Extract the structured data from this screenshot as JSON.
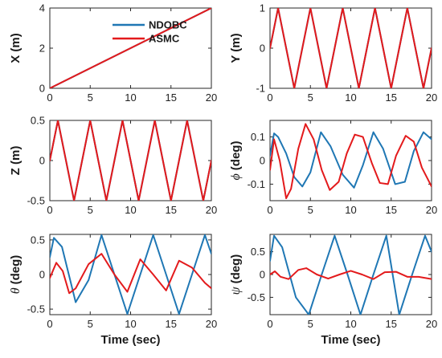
{
  "legend": {
    "entries": [
      {
        "name": "NDOBC",
        "color": "#1f77b4"
      },
      {
        "name": "ASMC",
        "color": "#e31a1c"
      }
    ]
  },
  "chart_data": [
    {
      "id": "X",
      "type": "line",
      "ylabel": "X (m)",
      "ylabel_math": false,
      "xlabel": "",
      "xlim": [
        0,
        20
      ],
      "ylim": [
        0,
        4
      ],
      "xticks": [
        0,
        5,
        10,
        15,
        20
      ],
      "xticklabels": [
        "0",
        "5",
        "10",
        "15",
        "20"
      ],
      "yticks": [
        0,
        2,
        4
      ],
      "yticklabels": [
        "0",
        "2",
        "4"
      ],
      "legend": "top",
      "series": [
        {
          "name": "NDOBC",
          "color": "#1f77b4",
          "x": [
            0,
            20
          ],
          "y": [
            0,
            4
          ]
        },
        {
          "name": "ASMC",
          "color": "#e31a1c",
          "x": [
            0,
            20
          ],
          "y": [
            0,
            4
          ]
        }
      ]
    },
    {
      "id": "Y",
      "type": "line",
      "ylabel": "Y (m)",
      "ylabel_math": false,
      "xlabel": "",
      "xlim": [
        0,
        20
      ],
      "ylim": [
        -1,
        1
      ],
      "xticks": [
        0,
        5,
        10,
        15,
        20
      ],
      "xticklabels": [
        "0",
        "5",
        "10",
        "15",
        "20"
      ],
      "yticks": [
        -1,
        0,
        1
      ],
      "yticklabels": [
        "-1",
        "0",
        "1"
      ],
      "series": [
        {
          "name": "NDOBC",
          "color": "#1f77b4",
          "x": [
            0,
            1,
            2,
            3,
            4,
            5,
            6,
            7,
            8,
            9,
            10,
            11,
            12,
            13,
            14,
            15,
            16,
            17,
            18,
            19,
            20
          ],
          "y": [
            0,
            1,
            0,
            -1,
            0,
            1,
            0,
            -1,
            0,
            1,
            0,
            -1,
            0,
            1,
            0,
            -1,
            0,
            1,
            0,
            -1,
            0
          ]
        },
        {
          "name": "ASMC",
          "color": "#e31a1c",
          "x": [
            0,
            1,
            2,
            3,
            4,
            5,
            6,
            7,
            8,
            9,
            10,
            11,
            12,
            13,
            14,
            15,
            16,
            17,
            18,
            19,
            20
          ],
          "y": [
            0,
            1,
            0,
            -1,
            0,
            1,
            0,
            -1,
            0,
            1,
            0,
            -1,
            0,
            1,
            0,
            -1,
            0,
            1,
            0,
            -1,
            0
          ]
        }
      ]
    },
    {
      "id": "Z",
      "type": "line",
      "ylabel": "Z (m)",
      "ylabel_math": false,
      "xlabel": "",
      "xlim": [
        0,
        20
      ],
      "ylim": [
        -0.5,
        0.5
      ],
      "xticks": [
        0,
        5,
        10,
        15,
        20
      ],
      "xticklabels": [
        "0",
        "5",
        "10",
        "15",
        "20"
      ],
      "yticks": [
        -0.5,
        0,
        0.5
      ],
      "yticklabels": [
        "-0.5",
        "0",
        "0.5"
      ],
      "series": [
        {
          "name": "NDOBC",
          "color": "#1f77b4",
          "x": [
            0,
            1,
            2,
            3,
            4,
            5,
            6,
            7,
            8,
            9,
            10,
            11,
            12,
            13,
            14,
            15,
            16,
            17,
            18,
            19,
            20
          ],
          "y": [
            0,
            0.5,
            0,
            -0.5,
            0,
            0.5,
            0,
            -0.5,
            0,
            0.5,
            0,
            -0.5,
            0,
            0.5,
            0,
            -0.5,
            0,
            0.5,
            0,
            -0.5,
            0
          ]
        },
        {
          "name": "ASMC",
          "color": "#e31a1c",
          "x": [
            0,
            1,
            2,
            3,
            4,
            5,
            6,
            7,
            8,
            9,
            10,
            11,
            12,
            13,
            14,
            15,
            16,
            17,
            18,
            19,
            20
          ],
          "y": [
            0,
            0.5,
            0,
            -0.5,
            0,
            0.5,
            0,
            -0.5,
            0,
            0.5,
            0,
            -0.5,
            0,
            0.5,
            0,
            -0.5,
            0,
            0.5,
            0,
            -0.5,
            0
          ]
        }
      ]
    },
    {
      "id": "phi",
      "type": "line",
      "ylabel": "ϕ (deg)",
      "ylabel_math": true,
      "xlabel": "",
      "xlim": [
        0,
        20
      ],
      "ylim": [
        -0.17,
        0.17
      ],
      "xticks": [
        0,
        5,
        10,
        15,
        20
      ],
      "xticklabels": [
        "0",
        "5",
        "10",
        "15",
        "20"
      ],
      "yticks": [
        -0.1,
        0,
        0.1
      ],
      "yticklabels": [
        "-0.1",
        "0",
        "0.1"
      ],
      "series": [
        {
          "name": "NDOBC",
          "color": "#1f77b4",
          "x": [
            0,
            0.5,
            1,
            2,
            3,
            4,
            5,
            6.3,
            7.5,
            9,
            10.4,
            11.5,
            12.8,
            14,
            15.5,
            16.7,
            17.8,
            19,
            20
          ],
          "y": [
            0.02,
            0.115,
            0.1,
            0.03,
            -0.07,
            -0.11,
            -0.05,
            0.12,
            0.06,
            -0.06,
            -0.115,
            -0.02,
            0.12,
            0.05,
            -0.1,
            -0.09,
            0.04,
            0.12,
            0.09
          ]
        },
        {
          "name": "ASMC",
          "color": "#e31a1c",
          "x": [
            0,
            0.5,
            1.2,
            2,
            2.6,
            3.5,
            4.4,
            5.4,
            6.4,
            7.4,
            8.5,
            9.5,
            10.5,
            11.5,
            12.6,
            13.6,
            14.6,
            15.6,
            16.8,
            17.8,
            18.8,
            20
          ],
          "y": [
            -0.04,
            0.09,
            0.0,
            -0.16,
            -0.12,
            0.05,
            0.155,
            0.09,
            -0.04,
            -0.125,
            -0.09,
            0.03,
            0.11,
            0.1,
            -0.01,
            -0.095,
            -0.1,
            0.02,
            0.105,
            0.08,
            -0.03,
            -0.11
          ]
        }
      ]
    },
    {
      "id": "theta",
      "type": "line",
      "ylabel": "θ (deg)",
      "ylabel_math": true,
      "xlabel": "Time (sec)",
      "xlim": [
        0,
        20
      ],
      "ylim": [
        -0.58,
        0.58
      ],
      "xticks": [
        0,
        5,
        10,
        15,
        20
      ],
      "xticklabels": [
        "0",
        "5",
        "10",
        "15",
        "20"
      ],
      "yticks": [
        -0.5,
        0,
        0.5
      ],
      "yticklabels": [
        "-0.5",
        "0",
        "0.5"
      ],
      "series": [
        {
          "name": "NDOBC",
          "color": "#1f77b4",
          "x": [
            0,
            0.5,
            1.5,
            3.2,
            4.8,
            6.4,
            8,
            9.6,
            11.2,
            12.8,
            14.4,
            16,
            17.6,
            19.2,
            20
          ],
          "y": [
            0.25,
            0.53,
            0.4,
            -0.4,
            -0.08,
            0.57,
            0.0,
            -0.57,
            0.0,
            0.57,
            0.0,
            -0.57,
            0.0,
            0.57,
            0.3
          ]
        },
        {
          "name": "ASMC",
          "color": "#e31a1c",
          "x": [
            0,
            0.8,
            1.6,
            2.4,
            3.2,
            4.8,
            6.4,
            8,
            9.6,
            11.2,
            12.8,
            14.4,
            16,
            17.6,
            19.2,
            20
          ],
          "y": [
            -0.05,
            0.17,
            0.05,
            -0.27,
            -0.2,
            0.15,
            0.3,
            0.0,
            -0.25,
            0.22,
            0.0,
            -0.23,
            0.2,
            0.1,
            -0.12,
            -0.2
          ]
        }
      ]
    },
    {
      "id": "psi",
      "type": "line",
      "ylabel": "ψ (deg)",
      "ylabel_math": true,
      "xlabel": "Time (sec)",
      "xlim": [
        0,
        20
      ],
      "ylim": [
        -0.88,
        0.88
      ],
      "xticks": [
        0,
        5,
        10,
        15,
        20
      ],
      "xticklabels": [
        "0",
        "5",
        "10",
        "15",
        "20"
      ],
      "yticks": [
        -0.5,
        0,
        0.5
      ],
      "yticklabels": [
        "-0.5",
        "0",
        "0.5"
      ],
      "series": [
        {
          "name": "NDOBC",
          "color": "#1f77b4",
          "x": [
            0,
            0.5,
            1.5,
            3.2,
            4.8,
            6.4,
            8,
            9.6,
            11.2,
            12.8,
            14.4,
            16,
            17.6,
            19.2,
            20
          ],
          "y": [
            0.3,
            0.85,
            0.6,
            -0.5,
            -0.88,
            0.0,
            0.85,
            0.0,
            -0.88,
            0.0,
            0.85,
            -0.88,
            0.0,
            0.85,
            0.5
          ]
        },
        {
          "name": "ASMC",
          "color": "#e31a1c",
          "x": [
            0,
            0.6,
            1.3,
            2.3,
            3.5,
            4.5,
            5.8,
            7.2,
            8.6,
            10,
            11.4,
            12.8,
            14.2,
            15.6,
            17,
            18.4,
            20
          ],
          "y": [
            0.0,
            0.07,
            -0.05,
            -0.1,
            0.1,
            0.14,
            0.0,
            -0.09,
            0.0,
            0.08,
            0.0,
            -0.1,
            0.05,
            0.06,
            -0.05,
            -0.05,
            -0.1
          ]
        }
      ]
    }
  ]
}
